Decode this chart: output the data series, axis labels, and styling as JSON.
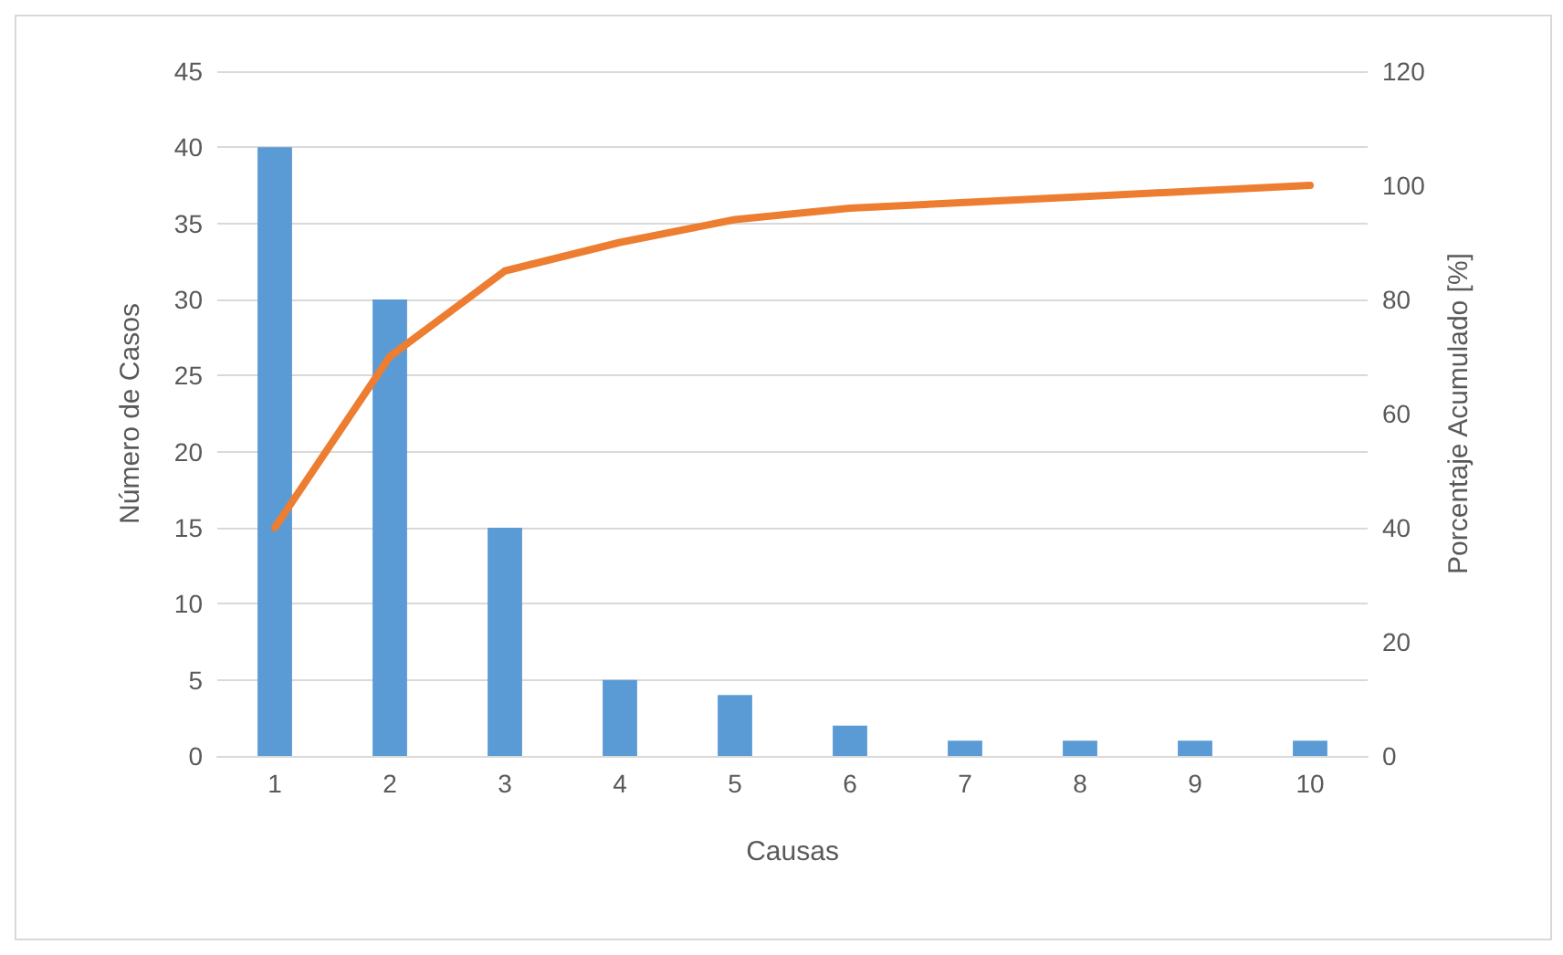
{
  "chart_data": {
    "type": "bar",
    "categories": [
      "1",
      "2",
      "3",
      "4",
      "5",
      "6",
      "7",
      "8",
      "9",
      "10"
    ],
    "series": [
      {
        "color": "#5b9bd5",
        "values": [
          40,
          30,
          15,
          5,
          4,
          2,
          1,
          1,
          1,
          1
        ]
      },
      {
        "type": "line",
        "axis": "y2",
        "color": "#ed7d31",
        "values": [
          40,
          70,
          85,
          90,
          94,
          96,
          97,
          98,
          99,
          100
        ]
      }
    ],
    "xlabel": "Causas",
    "ylabel": "Número de Casos",
    "y2label": "Porcentaje Acumulado [%]",
    "ylim": [
      0,
      45
    ],
    "yticks": [
      0,
      5,
      10,
      15,
      20,
      25,
      30,
      35,
      40,
      45
    ],
    "y2lim": [
      0,
      120
    ],
    "y2ticks": [
      0,
      20,
      40,
      60,
      80,
      100,
      120
    ],
    "grid": "y",
    "marker": "none",
    "line_style": "solid"
  }
}
